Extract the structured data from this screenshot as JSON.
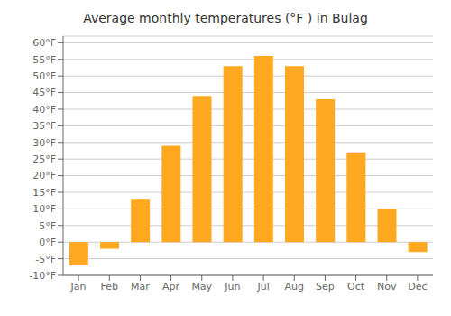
{
  "chart_data": {
    "type": "bar",
    "title": "Average monthly temperatures (°F ) in Bulag",
    "categories": [
      "Jan",
      "Feb",
      "Mar",
      "Apr",
      "May",
      "Jun",
      "Jul",
      "Aug",
      "Sep",
      "Oct",
      "Nov",
      "Dec"
    ],
    "values": [
      -7,
      -2,
      13,
      29,
      44,
      53,
      56,
      53,
      43,
      27,
      10,
      -3
    ],
    "color": "#FFA820",
    "ylim": [
      -10,
      62
    ],
    "yticks": [
      {
        "value": -10,
        "label": "-10°F"
      },
      {
        "value": -5,
        "label": "-5°F"
      },
      {
        "value": 0,
        "label": "0°F"
      },
      {
        "value": 5,
        "label": "5°F"
      },
      {
        "value": 10,
        "label": "10°F"
      },
      {
        "value": 15,
        "label": "15°F"
      },
      {
        "value": 20,
        "label": "20°F"
      },
      {
        "value": 25,
        "label": "25°F"
      },
      {
        "value": 30,
        "label": "30°F"
      },
      {
        "value": 35,
        "label": "35°F"
      },
      {
        "value": 40,
        "label": "40°F"
      },
      {
        "value": 45,
        "label": "45°F"
      },
      {
        "value": 50,
        "label": "50°F"
      },
      {
        "value": 55,
        "label": "55°F"
      },
      {
        "value": 60,
        "label": "60°F"
      }
    ],
    "grid": true
  }
}
